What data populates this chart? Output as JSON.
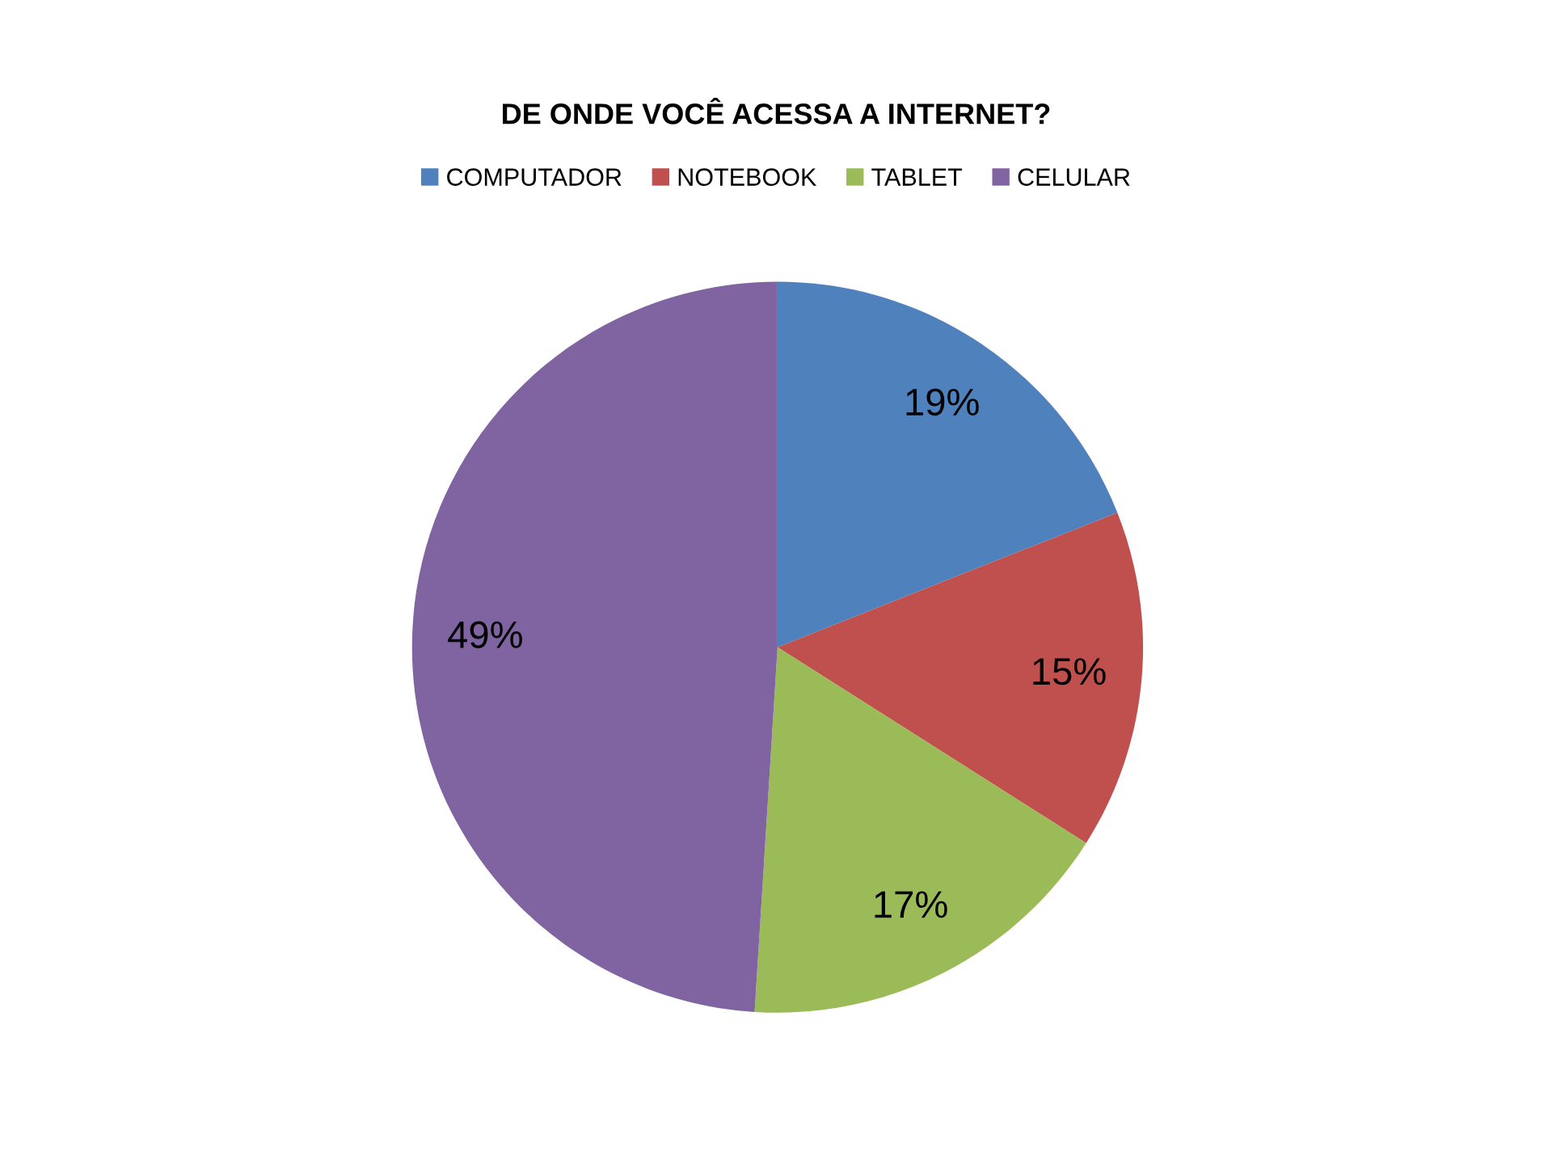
{
  "chart_data": {
    "type": "pie",
    "title": "DE ONDE VOCÊ ACESSA A INTERNET?",
    "categories": [
      "COMPUTADOR",
      "NOTEBOOK",
      "TABLET",
      "CELULAR"
    ],
    "values": [
      19,
      15,
      17,
      49
    ],
    "colors": [
      "#4f81bd",
      "#c0504d",
      "#9bbb59",
      "#8064a2"
    ],
    "value_labels": [
      "19%",
      "15%",
      "17%",
      "49%"
    ],
    "legend": "top"
  }
}
